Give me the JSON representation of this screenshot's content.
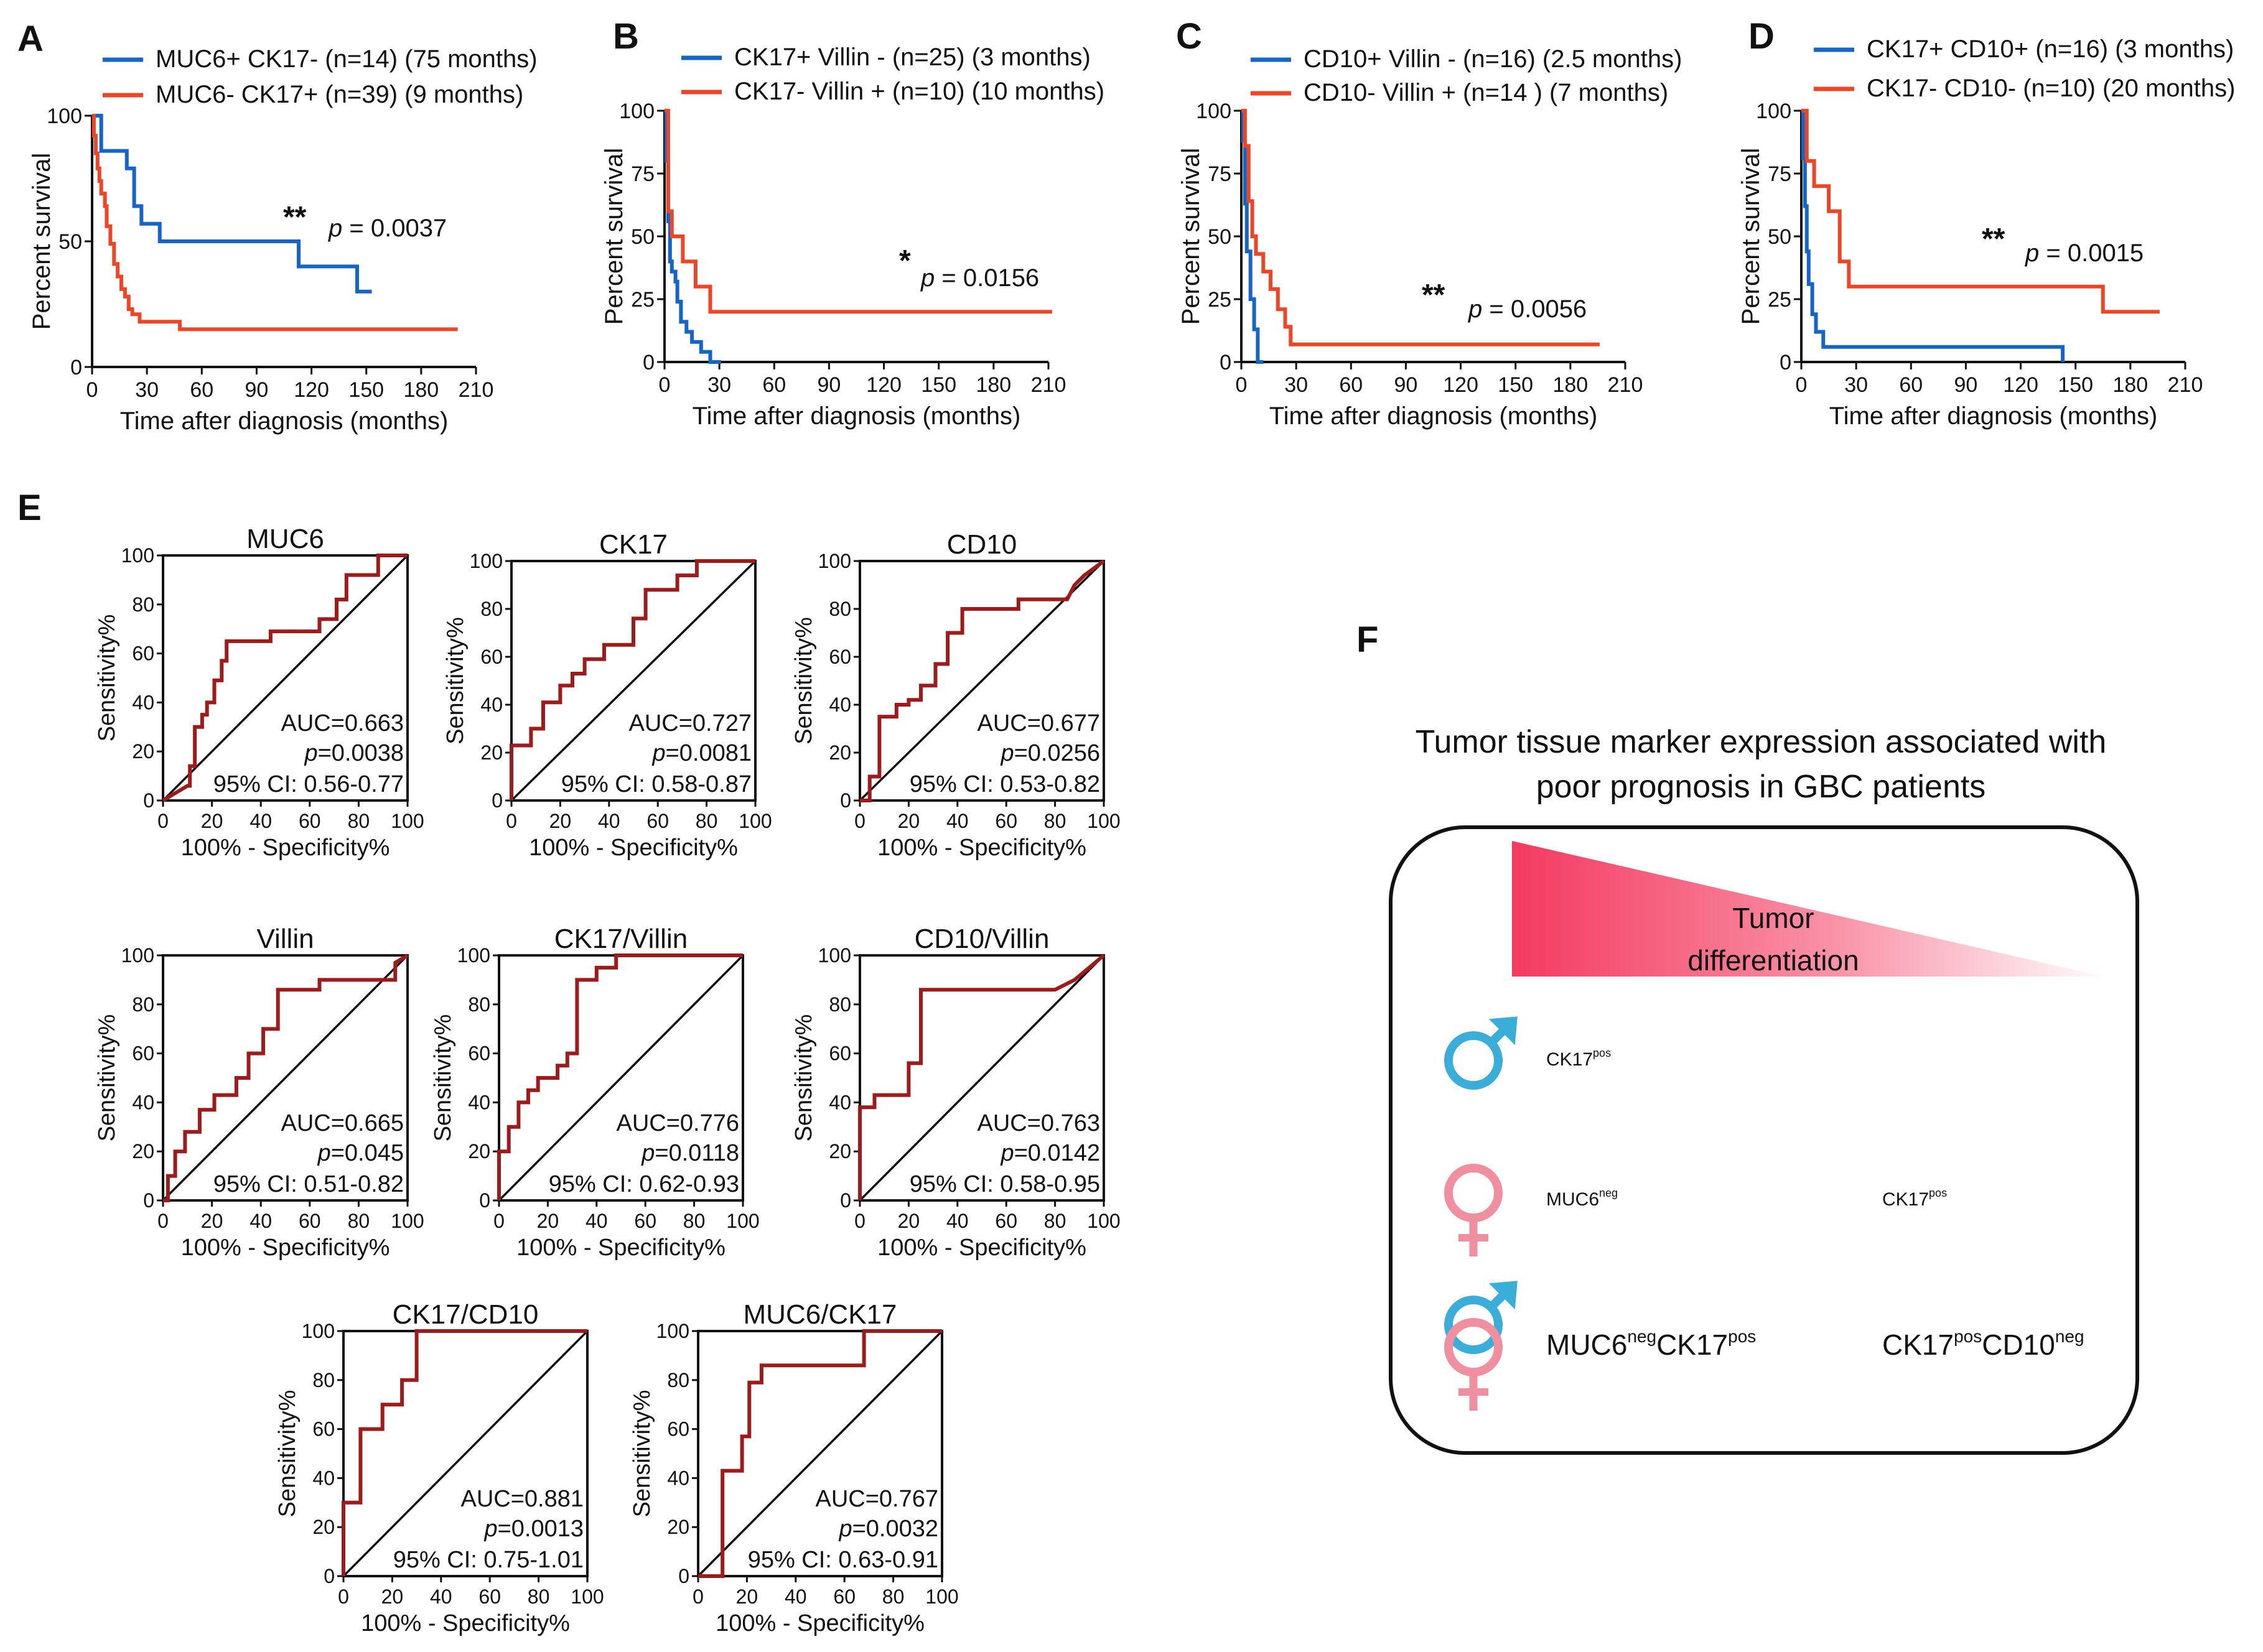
{
  "colors": {
    "blue": "#1565c8",
    "red": "#ee4527",
    "roc": "#9d1b1b",
    "male": "#3aaed8",
    "female": "#ef8fa0",
    "gradient": "#f43a60"
  },
  "chart_data": [
    {
      "id": "A",
      "type": "line",
      "subtype": "kaplan-meier",
      "xlabel": "Time after diagnosis (months)",
      "ylabel": "Percent survival",
      "xticks": [
        0,
        30,
        60,
        90,
        120,
        150,
        180,
        210
      ],
      "yticks": [
        0,
        50,
        100
      ],
      "xlim": [
        0,
        210
      ],
      "ylim": [
        0,
        100
      ],
      "stars": "**",
      "p_label": "p",
      "p_text": " = 0.0037",
      "series": [
        {
          "name": "MUC6+ CK17- (n=14) (75 months)",
          "color": "blue",
          "x": [
            0,
            5,
            5,
            19,
            19,
            23,
            23,
            27,
            27,
            37,
            37,
            113,
            113,
            145,
            145,
            153
          ],
          "y": [
            100,
            100,
            86,
            86,
            79,
            79,
            64,
            64,
            57,
            57,
            50,
            50,
            40,
            40,
            30,
            30
          ]
        },
        {
          "name": "MUC6- CK17+ (n=39) (9 months)",
          "color": "red",
          "x": [
            0,
            1,
            1,
            2,
            2,
            3,
            3,
            4,
            4,
            5,
            5,
            7,
            7,
            8,
            8,
            10,
            10,
            12,
            12,
            14,
            14,
            16,
            16,
            18,
            18,
            20,
            20,
            22,
            22,
            26,
            26,
            48,
            48,
            200
          ],
          "y": [
            100,
            100,
            92,
            92,
            85,
            85,
            79,
            79,
            74,
            74,
            69,
            69,
            64,
            64,
            56,
            56,
            49,
            49,
            41,
            41,
            36,
            36,
            31,
            31,
            28,
            28,
            23,
            23,
            21,
            21,
            18,
            18,
            15,
            15
          ]
        }
      ]
    },
    {
      "id": "B",
      "type": "line",
      "subtype": "kaplan-meier",
      "xlabel": "Time after diagnosis (months)",
      "ylabel": "Percent survival",
      "xticks": [
        0,
        30,
        60,
        90,
        120,
        150,
        180,
        210
      ],
      "yticks": [
        0,
        25,
        50,
        75,
        100
      ],
      "xlim": [
        0,
        210
      ],
      "ylim": [
        0,
        100
      ],
      "stars": "*",
      "p_label": "p",
      "p_text": " = 0.0156",
      "series": [
        {
          "name": "CK17+ Villin - (n=25) (3 months)",
          "color": "blue",
          "x": [
            0,
            1,
            1,
            2,
            2,
            3,
            3,
            4,
            4,
            6,
            6,
            7,
            7,
            9,
            9,
            12,
            12,
            15,
            15,
            20,
            20,
            25,
            25,
            31
          ],
          "y": [
            100,
            100,
            80,
            80,
            56,
            56,
            40,
            40,
            36,
            36,
            32,
            32,
            24,
            24,
            16,
            16,
            12,
            12,
            8,
            8,
            4,
            4,
            0,
            0
          ]
        },
        {
          "name": "CK17- Villin + (n=10) (10 months)",
          "color": "red",
          "x": [
            0,
            2,
            2,
            4,
            4,
            10,
            10,
            17,
            17,
            25,
            25,
            212
          ],
          "y": [
            100,
            100,
            60,
            60,
            50,
            50,
            40,
            40,
            30,
            30,
            20,
            20
          ]
        }
      ]
    },
    {
      "id": "C",
      "type": "line",
      "subtype": "kaplan-meier",
      "xlabel": "Time after diagnosis (months)",
      "ylabel": "Percent survival",
      "xticks": [
        0,
        30,
        60,
        90,
        120,
        150,
        180,
        210
      ],
      "yticks": [
        0,
        25,
        50,
        75,
        100
      ],
      "xlim": [
        0,
        210
      ],
      "ylim": [
        0,
        100
      ],
      "stars": "**",
      "p_label": "p",
      "p_text": " = 0.0056",
      "series": [
        {
          "name": "CD10+ Villin - (n=16) (2.5 months)",
          "color": "blue",
          "x": [
            0,
            1,
            1,
            2,
            2,
            3,
            3,
            5,
            5,
            7,
            7,
            9,
            9,
            12
          ],
          "y": [
            100,
            100,
            88,
            88,
            63,
            63,
            44,
            44,
            25,
            25,
            13,
            13,
            0,
            0
          ]
        },
        {
          "name": "CD10- Villin + (n=14 ) (7 months)",
          "color": "red",
          "x": [
            0,
            2,
            2,
            4,
            4,
            6,
            6,
            8,
            8,
            12,
            12,
            16,
            16,
            20,
            20,
            24,
            24,
            27,
            27,
            196
          ],
          "y": [
            100,
            100,
            86,
            86,
            64,
            64,
            50,
            50,
            43,
            43,
            36,
            36,
            29,
            29,
            21,
            21,
            14,
            14,
            7,
            7
          ]
        }
      ]
    },
    {
      "id": "D",
      "type": "line",
      "subtype": "kaplan-meier",
      "xlabel": "Time after diagnosis (months)",
      "ylabel": "Percent survival",
      "xticks": [
        0,
        30,
        60,
        90,
        120,
        150,
        180,
        210
      ],
      "yticks": [
        0,
        25,
        50,
        75,
        100
      ],
      "xlim": [
        0,
        210
      ],
      "ylim": [
        0,
        100
      ],
      "stars": "**",
      "p_label": "p",
      "p_text": " = 0.0015",
      "series": [
        {
          "name": "CK17+ CD10+ (n=16) (3 months)",
          "color": "blue",
          "x": [
            0,
            1,
            1,
            2,
            2,
            3,
            3,
            4,
            4,
            6,
            6,
            8,
            8,
            12,
            12,
            143,
            143
          ],
          "y": [
            100,
            100,
            81,
            81,
            62,
            62,
            44,
            44,
            31,
            31,
            19,
            19,
            12,
            12,
            6,
            6,
            0
          ]
        },
        {
          "name": "CK17- CD10- (n=10) (20 months)",
          "color": "red",
          "x": [
            0,
            3,
            3,
            7,
            7,
            15,
            15,
            21,
            21,
            26,
            26,
            165,
            165,
            196
          ],
          "y": [
            100,
            100,
            80,
            80,
            70,
            70,
            60,
            60,
            40,
            40,
            30,
            30,
            20,
            20
          ]
        }
      ]
    },
    {
      "id": "E-MUC6",
      "type": "line",
      "subtype": "roc",
      "title": "MUC6",
      "xlabel": "100% - Specificity%",
      "ylabel": "Sensitivity%",
      "ticks": [
        0,
        20,
        40,
        60,
        80,
        100
      ],
      "auc": "AUC=0.663",
      "p_label": "p",
      "p_text": "=0.0038",
      "ci": "95% CI: 0.56-0.77",
      "x": [
        0,
        5,
        10,
        11,
        11,
        13,
        13,
        16,
        16,
        18,
        18,
        21,
        21,
        24,
        24,
        26,
        26,
        44,
        44,
        64,
        64,
        71,
        71,
        75,
        75,
        88,
        88,
        100
      ],
      "y": [
        0,
        3,
        6,
        6,
        14,
        14,
        30,
        30,
        35,
        35,
        40,
        40,
        49,
        49,
        57,
        57,
        65,
        65,
        69,
        69,
        74,
        74,
        82,
        82,
        92,
        92,
        100,
        100
      ]
    },
    {
      "id": "E-CK17",
      "type": "line",
      "subtype": "roc",
      "title": "CK17",
      "xlabel": "100% - Specificity%",
      "ylabel": "Sensitivity%",
      "ticks": [
        0,
        20,
        40,
        60,
        80,
        100
      ],
      "auc": "AUC=0.727",
      "p_label": "p",
      "p_text": "=0.0081",
      "ci": "95% CI: 0.58-0.87",
      "x": [
        0,
        0,
        8,
        8,
        13,
        13,
        20,
        20,
        25,
        25,
        30,
        30,
        38,
        38,
        50,
        50,
        55,
        55,
        68,
        68,
        76,
        76,
        100
      ],
      "y": [
        0,
        23,
        23,
        30,
        30,
        41,
        41,
        48,
        48,
        53,
        53,
        59,
        59,
        65,
        65,
        76,
        76,
        88,
        88,
        94,
        94,
        100,
        100
      ]
    },
    {
      "id": "E-CD10",
      "type": "line",
      "subtype": "roc",
      "title": "CD10",
      "xlabel": "100% - Specificity%",
      "ylabel": "Sensitivity%",
      "ticks": [
        0,
        20,
        40,
        60,
        80,
        100
      ],
      "auc": "AUC=0.677",
      "p_label": "p",
      "p_text": "=0.0256",
      "ci": "95% CI: 0.53-0.82",
      "x": [
        0,
        4,
        4,
        8,
        8,
        15,
        15,
        20,
        20,
        25,
        25,
        31,
        31,
        36,
        36,
        42,
        42,
        65,
        65,
        85,
        88,
        92,
        100
      ],
      "y": [
        0,
        0,
        10,
        10,
        35,
        35,
        40,
        40,
        42,
        42,
        48,
        48,
        57,
        57,
        70,
        70,
        80,
        80,
        84,
        84,
        90,
        94,
        100
      ]
    },
    {
      "id": "E-Villin",
      "type": "line",
      "subtype": "roc",
      "title": "Villin",
      "xlabel": "100% - Specificity%",
      "ylabel": "Sensitivity%",
      "ticks": [
        0,
        20,
        40,
        60,
        80,
        100
      ],
      "auc": "AUC=0.665",
      "p_label": "p",
      "p_text": "=0.045",
      "ci": "95% CI:  0.51-0.82",
      "x": [
        0,
        2,
        2,
        5,
        5,
        9,
        9,
        15,
        15,
        21,
        21,
        30,
        30,
        35,
        35,
        41,
        41,
        47,
        47,
        64,
        64,
        95,
        95,
        100
      ],
      "y": [
        0,
        0,
        10,
        10,
        20,
        20,
        28,
        28,
        37,
        37,
        43,
        43,
        50,
        50,
        60,
        60,
        70,
        70,
        86,
        86,
        90,
        90,
        97,
        100
      ]
    },
    {
      "id": "E-CK17Villin",
      "type": "line",
      "subtype": "roc",
      "title": "CK17/Villin",
      "xlabel": "100% - Specificity%",
      "ylabel": "Sensitivity%",
      "ticks": [
        0,
        20,
        40,
        60,
        80,
        100
      ],
      "auc": "AUC=0.776",
      "p_label": "p",
      "p_text": "=0.0118",
      "ci": "95% CI:  0.62-0.93",
      "x": [
        0,
        0,
        4,
        4,
        8,
        8,
        12,
        12,
        16,
        16,
        24,
        24,
        28,
        28,
        32,
        32,
        40,
        40,
        48,
        48,
        56,
        56,
        100
      ],
      "y": [
        0,
        20,
        20,
        30,
        30,
        40,
        40,
        45,
        45,
        50,
        50,
        55,
        55,
        60,
        60,
        90,
        90,
        95,
        95,
        100,
        100,
        100,
        100
      ]
    },
    {
      "id": "E-CD10Villin",
      "type": "line",
      "subtype": "roc",
      "title": "CD10/Villin",
      "xlabel": "100% - Specificity%",
      "ylabel": "Sensitivity%",
      "ticks": [
        0,
        20,
        40,
        60,
        80,
        100
      ],
      "auc": "AUC=0.763",
      "p_label": "p",
      "p_text": "=0.0142",
      "ci": "95% CI: 0.58-0.95",
      "x": [
        0,
        0,
        6,
        6,
        20,
        20,
        25,
        25,
        80,
        80,
        88,
        100
      ],
      "y": [
        0,
        38,
        38,
        43,
        43,
        56,
        56,
        86,
        86,
        86,
        90,
        100
      ]
    },
    {
      "id": "E-CK17CD10",
      "type": "line",
      "subtype": "roc",
      "title": "CK17/CD10",
      "xlabel": "100% - Specificity%",
      "ylabel": "Sensitivity%",
      "ticks": [
        0,
        20,
        40,
        60,
        80,
        100
      ],
      "auc": "AUC=0.881",
      "p_label": "p",
      "p_text": "=0.0013",
      "ci": "95% CI: 0.75-1.01",
      "x": [
        0,
        0,
        7,
        7,
        16,
        16,
        24,
        24,
        30,
        30,
        100
      ],
      "y": [
        0,
        30,
        30,
        60,
        60,
        70,
        70,
        80,
        80,
        100,
        100
      ]
    },
    {
      "id": "E-MUC6CK17",
      "type": "line",
      "subtype": "roc",
      "title": "MUC6/CK17",
      "xlabel": "100% - Specificity%",
      "ylabel": "Sensitivity%",
      "ticks": [
        0,
        20,
        40,
        60,
        80,
        100
      ],
      "auc": "AUC=0.767",
      "p_label": "p",
      "p_text": "=0.0032",
      "ci": "95% CI:  0.63-0.91",
      "x": [
        0,
        10,
        10,
        18,
        18,
        21,
        21,
        26,
        26,
        68,
        68,
        100
      ],
      "y": [
        0,
        0,
        43,
        43,
        57,
        57,
        79,
        79,
        86,
        86,
        100,
        100
      ]
    }
  ],
  "panel_letters": {
    "A": "A",
    "B": "B",
    "C": "C",
    "D": "D",
    "E": "E",
    "F": "F"
  },
  "panel_f": {
    "title_line1": "Tumor tissue marker expression associated with",
    "title_line2": "poor prognosis in GBC patients",
    "gradient_label_line1": "Tumor",
    "gradient_label_line2": "differentiation",
    "rows": [
      {
        "symbol": "male",
        "markers": [
          {
            "base": "CK17",
            "sup": "pos"
          }
        ]
      },
      {
        "symbol": "female",
        "markers": [
          {
            "base": "MUC6",
            "sup": "neg"
          },
          {
            "base": "CK17",
            "sup": "pos"
          }
        ]
      },
      {
        "symbol": "both",
        "markers": [
          {
            "base": "MUC6",
            "sup": "neg",
            "base2": "CK17",
            "sup2": "pos"
          },
          {
            "base": "CK17",
            "sup": "pos",
            "base2": "CD10",
            "sup2": "neg"
          }
        ]
      }
    ],
    "symbol_names": {
      "male": "male-symbol-icon",
      "female": "female-symbol-icon",
      "both": "male-female-symbol-icon"
    }
  }
}
